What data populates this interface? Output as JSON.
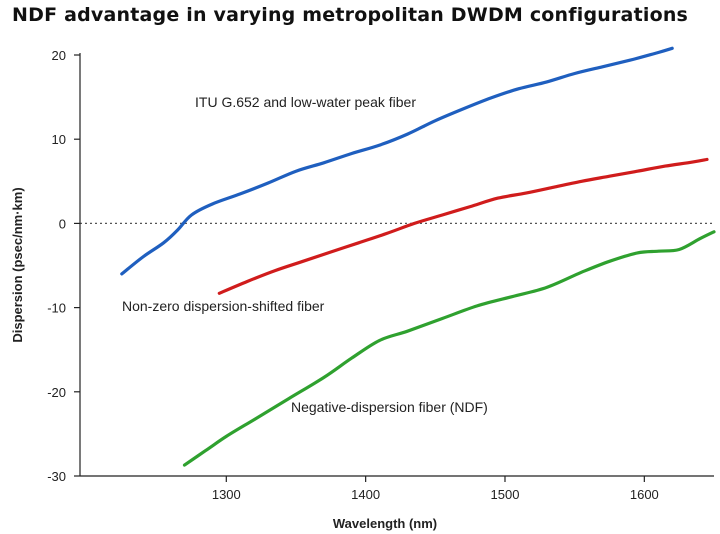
{
  "chart_data": {
    "type": "line",
    "title": "NDF advantage in varying metropolitan DWDM configurations",
    "xlabel": "Wavelength (nm)",
    "ylabel": "Dispersion (psec/nm·km)",
    "xlim": [
      1195,
      1650
    ],
    "ylim": [
      -30,
      20
    ],
    "xticks": [
      1300,
      1400,
      1500,
      1600
    ],
    "yticks": [
      20,
      10,
      0,
      -10,
      -20,
      -30
    ],
    "grid": false,
    "zero_reference_line": "dotted",
    "series": [
      {
        "name": "ITU G.652 and low-water peak fiber",
        "color": "#1f5fbf",
        "x": [
          1225,
          1240,
          1255,
          1265,
          1275,
          1290,
          1310,
          1330,
          1350,
          1370,
          1390,
          1410,
          1430,
          1450,
          1470,
          1490,
          1510,
          1530,
          1550,
          1570,
          1590,
          1610,
          1620
        ],
        "y": [
          -6,
          -4,
          -2.3,
          -0.8,
          1.0,
          2.3,
          3.5,
          4.8,
          6.2,
          7.2,
          8.3,
          9.3,
          10.6,
          12.2,
          13.6,
          14.9,
          16.0,
          16.8,
          17.8,
          18.6,
          19.4,
          20.3,
          20.8
        ]
      },
      {
        "name": "Non-zero dispersion-shifted fiber",
        "color": "#d01c1c",
        "x": [
          1295,
          1315,
          1335,
          1355,
          1375,
          1395,
          1415,
          1435,
          1455,
          1475,
          1495,
          1515,
          1535,
          1555,
          1575,
          1595,
          1615,
          1635,
          1645
        ],
        "y": [
          -8.3,
          -6.9,
          -5.6,
          -4.5,
          -3.4,
          -2.3,
          -1.2,
          0.0,
          1.0,
          2.0,
          3.0,
          3.6,
          4.3,
          5.0,
          5.6,
          6.2,
          6.8,
          7.3,
          7.6
        ]
      },
      {
        "name": "Negative-dispersion fiber (NDF)",
        "color": "#2fa12f",
        "x": [
          1270,
          1285,
          1300,
          1320,
          1345,
          1370,
          1390,
          1410,
          1430,
          1455,
          1480,
          1505,
          1530,
          1555,
          1575,
          1595,
          1610,
          1625,
          1640,
          1650
        ],
        "y": [
          -28.7,
          -27,
          -25.3,
          -23.3,
          -20.8,
          -18.3,
          -16.0,
          -13.9,
          -12.8,
          -11.3,
          -9.8,
          -8.7,
          -7.6,
          -5.8,
          -4.5,
          -3.5,
          -3.3,
          -3.1,
          -1.8,
          -1.0
        ]
      }
    ]
  }
}
